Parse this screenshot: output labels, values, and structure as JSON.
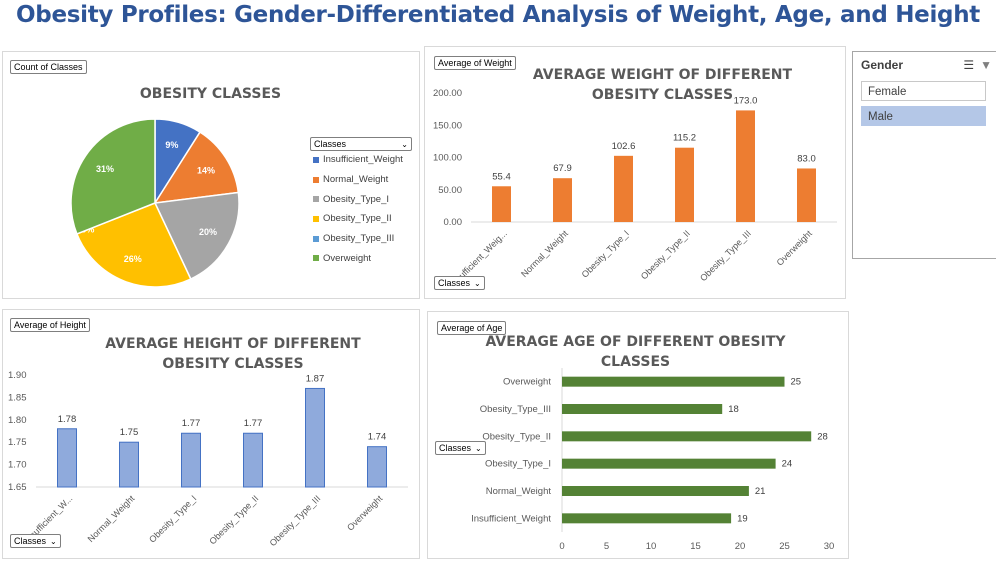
{
  "page": {
    "title": "Obesity Profiles: Gender-Differentiated Analysis of Weight, Age, and Height"
  },
  "slicer": {
    "header": "Gender",
    "items": [
      {
        "label": "Female",
        "selected": false
      },
      {
        "label": "Male",
        "selected": true
      }
    ],
    "icons": [
      "multi-select-icon",
      "clear-filter-icon"
    ],
    "colors": {
      "selected": "#b4c7e7",
      "unselected": "#ffffff",
      "border": "#a6a6a6"
    }
  },
  "pie_panel": {
    "tag": "Count of Classes",
    "dropdown": "Classes"
  },
  "weight_panel": {
    "tag": "Average of Weight",
    "dropdown": "Classes"
  },
  "height_panel": {
    "tag": "Average of Height",
    "dropdown": "Classes"
  },
  "age_panel": {
    "tag": "Average of Age",
    "dropdown": "Classes"
  },
  "chart_data": [
    {
      "type": "pie",
      "title": "OBESITY CLASSES",
      "legend_title": "Classes",
      "legend_position": "right",
      "categories": [
        "Insufficient_Weight",
        "Normal_Weight",
        "Obesity_Type_I",
        "Obesity_Type_II",
        "Obesity_Type_III",
        "Overweight"
      ],
      "values": [
        9,
        14,
        20,
        26,
        0,
        31
      ],
      "labels": [
        "9%",
        "14%",
        "20%",
        "26%",
        "0%",
        "31%"
      ],
      "colors": [
        "#4472c4",
        "#ed7d31",
        "#a5a5a5",
        "#ffc000",
        "#5b9bd5",
        "#70ad47"
      ]
    },
    {
      "type": "bar",
      "title": "AVERAGE WEIGHT OF DIFFERENT OBESITY CLASSES",
      "categories": [
        "Insufficient_Weig...",
        "Normal_Weight",
        "Obesity_Type_I",
        "Obesity_Type_II",
        "Obesity_Type_III",
        "Overweight"
      ],
      "values": [
        55.4,
        67.9,
        102.6,
        115.2,
        173.0,
        83.0
      ],
      "data_labels": [
        "55.4",
        "67.9",
        "102.6",
        "115.2",
        "173.0",
        "83.0"
      ],
      "y_ticks": [
        "0.00",
        "50.00",
        "100.00",
        "150.00",
        "200.00"
      ],
      "ylim": [
        0,
        200
      ],
      "color": "#ed7d31",
      "grid": false
    },
    {
      "type": "bar",
      "title": "AVERAGE HEIGHT OF DIFFERENT OBESITY CLASSES",
      "categories": [
        "Insufficient_W...",
        "Normal_Weight",
        "Obesity_Type_I",
        "Obesity_Type_II",
        "Obesity_Type_III",
        "Overweight"
      ],
      "values": [
        1.78,
        1.75,
        1.77,
        1.77,
        1.87,
        1.74
      ],
      "data_labels": [
        "1.78",
        "1.75",
        "1.77",
        "1.77",
        "1.87",
        "1.74"
      ],
      "y_ticks": [
        "1.65",
        "1.70",
        "1.75",
        "1.80",
        "1.85",
        "1.90"
      ],
      "ylim": [
        1.65,
        1.9
      ],
      "color": "#8faadc",
      "grid": false
    },
    {
      "type": "bar",
      "orientation": "horizontal",
      "title": "AVERAGE AGE OF DIFFERENT OBESITY CLASSES",
      "categories": [
        "Overweight",
        "Obesity_Type_III",
        "Obesity_Type_II",
        "Obesity_Type_I",
        "Normal_Weight",
        "Insufficient_Weight"
      ],
      "values": [
        25,
        18,
        28,
        24,
        21,
        19
      ],
      "data_labels": [
        "25",
        "18",
        "28",
        "24",
        "21",
        "19"
      ],
      "x_ticks": [
        "0",
        "5",
        "10",
        "15",
        "20",
        "25",
        "30"
      ],
      "xlim": [
        0,
        30
      ],
      "color": "#548235",
      "grid": false
    }
  ]
}
